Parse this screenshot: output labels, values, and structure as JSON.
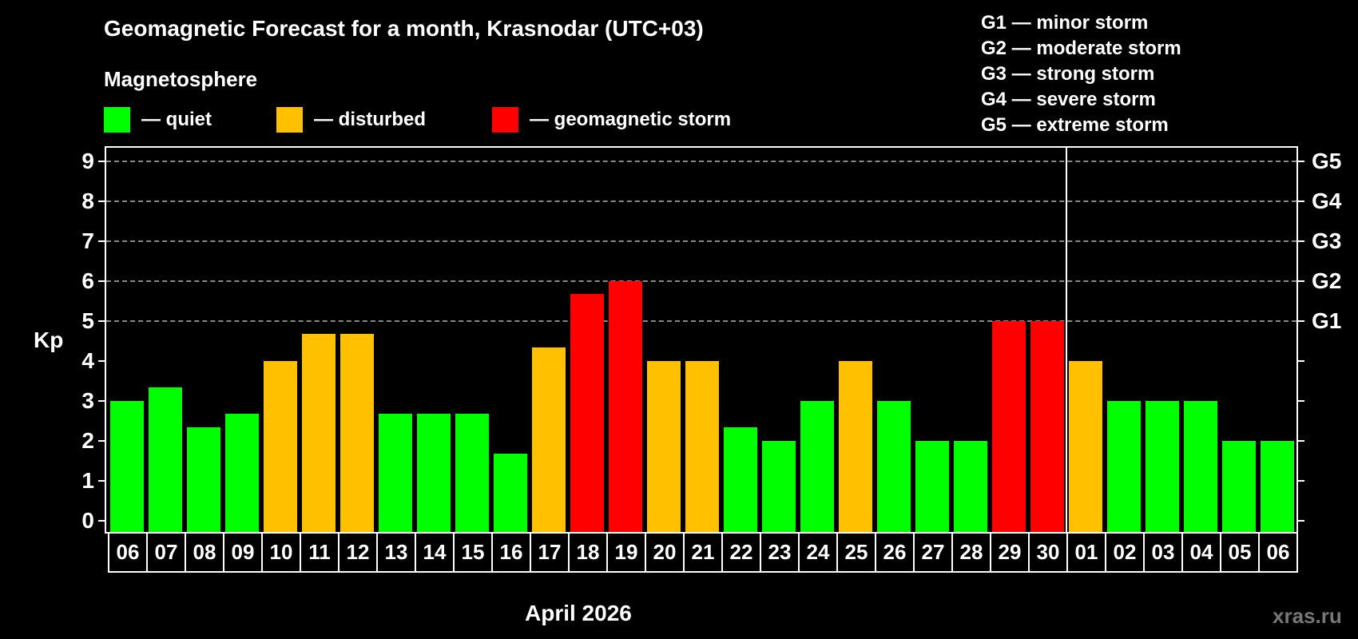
{
  "header": {
    "title": "Geomagnetic Forecast for a month, Krasnodar (UTC+03)",
    "subtitle": "Magnetosphere"
  },
  "legend": [
    {
      "label": "— quiet",
      "color": "#00ff00"
    },
    {
      "label": "— disturbed",
      "color": "#ffc000"
    },
    {
      "label": "— geomagnetic storm",
      "color": "#ff0000"
    }
  ],
  "storm_scale": [
    "G1 — minor storm",
    "G2 — moderate storm",
    "G3 — strong storm",
    "G4 — severe storm",
    "G5 — extreme storm"
  ],
  "axes": {
    "ylabel": "Kp",
    "yticks": [
      "0",
      "1",
      "2",
      "3",
      "4",
      "5",
      "6",
      "7",
      "8",
      "9"
    ],
    "right_labels": [
      {
        "kp": 5,
        "label": "G1"
      },
      {
        "kp": 6,
        "label": "G2"
      },
      {
        "kp": 7,
        "label": "G3"
      },
      {
        "kp": 8,
        "label": "G4"
      },
      {
        "kp": 9,
        "label": "G5"
      }
    ],
    "xlabel": "April 2026"
  },
  "watermark": "xras.ru",
  "colors": {
    "quiet": "#00ff00",
    "disturbed": "#ffc000",
    "storm": "#ff0000",
    "grid": "#888888"
  },
  "chart_data": {
    "type": "bar",
    "title": "Geomagnetic Forecast for a month, Krasnodar (UTC+03)",
    "subtitle": "Magnetosphere",
    "xlabel": "April 2026",
    "ylabel": "Kp",
    "ylim": [
      0,
      9
    ],
    "grid": "dashed horizontal at Kp 5–9",
    "right_axis_labels": {
      "5": "G1",
      "6": "G2",
      "7": "G3",
      "8": "G4",
      "9": "G5"
    },
    "month_divider_after": "30",
    "categories": [
      "06",
      "07",
      "08",
      "09",
      "10",
      "11",
      "12",
      "13",
      "14",
      "15",
      "16",
      "17",
      "18",
      "19",
      "20",
      "21",
      "22",
      "23",
      "24",
      "25",
      "26",
      "27",
      "28",
      "29",
      "30",
      "01",
      "02",
      "03",
      "04",
      "05",
      "06"
    ],
    "values": [
      3.0,
      3.33,
      2.33,
      2.67,
      4.0,
      4.67,
      4.67,
      2.67,
      2.67,
      2.67,
      1.67,
      4.33,
      5.67,
      6.0,
      4.0,
      4.0,
      2.33,
      2.0,
      3.0,
      4.0,
      3.0,
      2.0,
      2.0,
      5.0,
      5.0,
      4.0,
      3.0,
      3.0,
      3.0,
      2.0,
      2.0
    ],
    "status": [
      "quiet",
      "quiet",
      "quiet",
      "quiet",
      "disturbed",
      "disturbed",
      "disturbed",
      "quiet",
      "quiet",
      "quiet",
      "quiet",
      "disturbed",
      "storm",
      "storm",
      "disturbed",
      "disturbed",
      "quiet",
      "quiet",
      "quiet",
      "disturbed",
      "quiet",
      "quiet",
      "quiet",
      "storm",
      "storm",
      "disturbed",
      "quiet",
      "quiet",
      "quiet",
      "quiet",
      "quiet"
    ],
    "legend": [
      "quiet",
      "disturbed",
      "geomagnetic storm"
    ]
  }
}
